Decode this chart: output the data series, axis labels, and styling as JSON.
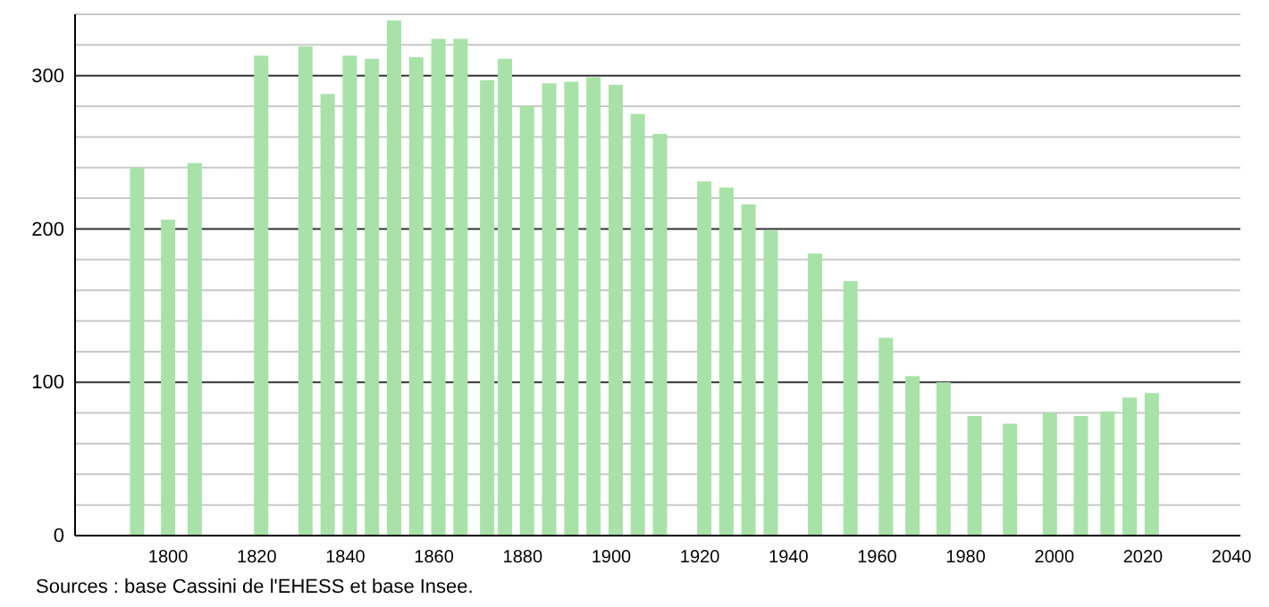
{
  "chart_data": {
    "type": "bar",
    "x": [
      1793,
      1800,
      1806,
      1821,
      1831,
      1836,
      1841,
      1846,
      1851,
      1856,
      1861,
      1866,
      1872,
      1876,
      1881,
      1886,
      1891,
      1896,
      1901,
      1906,
      1911,
      1921,
      1926,
      1931,
      1936,
      1946,
      1954,
      1962,
      1968,
      1975,
      1982,
      1990,
      1999,
      2006,
      2012,
      2017,
      2022
    ],
    "values": [
      240,
      206,
      243,
      313,
      319,
      288,
      313,
      311,
      336,
      312,
      324,
      324,
      297,
      311,
      280,
      295,
      296,
      299,
      294,
      275,
      262,
      231,
      227,
      216,
      199,
      184,
      166,
      129,
      104,
      100,
      78,
      73,
      80,
      78,
      81,
      90,
      93
    ],
    "color": "#a8e2a8",
    "xlim": [
      1779,
      2042
    ],
    "xticks": [
      1800,
      1820,
      1840,
      1860,
      1880,
      1900,
      1920,
      1940,
      1960,
      1980,
      2000,
      2020,
      2040
    ],
    "ylim": [
      0,
      340
    ],
    "yticks": [
      0,
      {
        "value": 20,
        "label": null
      },
      {
        "value": 40,
        "label": null
      },
      {
        "value": 60,
        "label": null
      },
      {
        "value": 80,
        "label": null
      },
      100,
      {
        "value": 120,
        "label": null
      },
      {
        "value": 140,
        "label": null
      },
      {
        "value": 160,
        "label": null
      },
      {
        "value": 180,
        "label": null
      },
      200,
      {
        "value": 220,
        "label": null
      },
      {
        "value": 240,
        "label": null
      },
      {
        "value": 260,
        "label": null
      },
      {
        "value": 280,
        "label": null
      },
      300,
      {
        "value": 320,
        "label": null
      },
      {
        "value": 340,
        "label": null
      }
    ],
    "grid": "y",
    "annotations": [
      "Sources : base Cassini de l'EHESS et base Insee."
    ]
  }
}
